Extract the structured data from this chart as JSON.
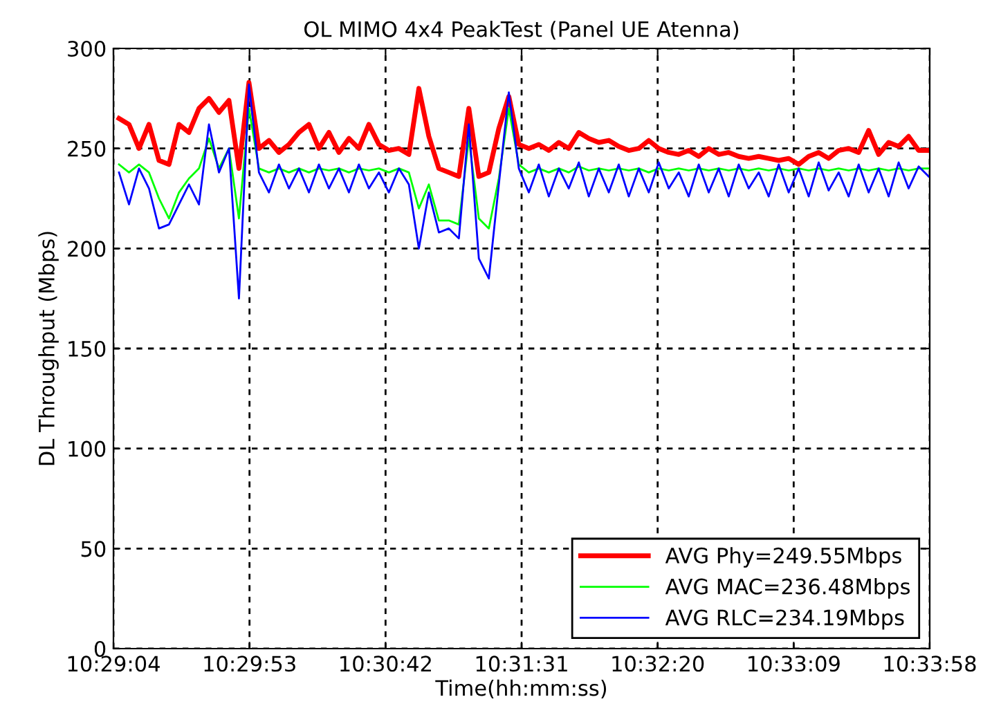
{
  "chart_data": {
    "type": "line",
    "title": "OL MIMO 4x4 PeakTest (Panel UE Atenna)",
    "xlabel": "Time(hh:mm:ss)",
    "ylabel": "DL Throughput (Mbps)",
    "x": [
      10.485,
      10.486,
      10.487,
      10.488,
      10.489,
      10.49,
      10.491,
      10.492,
      10.493,
      10.494,
      10.495,
      10.496,
      10.497,
      10.498,
      10.499,
      10.5,
      10.501,
      10.502,
      10.503,
      10.504,
      10.505,
      10.506,
      10.507,
      10.508,
      10.509,
      10.51,
      10.511,
      10.512,
      10.513,
      10.514,
      10.515,
      10.516,
      10.517,
      10.518,
      10.519,
      10.52,
      10.521,
      10.522,
      10.523,
      10.524,
      10.525,
      10.526,
      10.527,
      10.528,
      10.529,
      10.53,
      10.531,
      10.532,
      10.533,
      10.534,
      10.535,
      10.536,
      10.537,
      10.538,
      10.539,
      10.54,
      10.541,
      10.542,
      10.543,
      10.544,
      10.545,
      10.546,
      10.547,
      10.548,
      10.549,
      10.55,
      10.551,
      10.552,
      10.553,
      10.554,
      10.555,
      10.556,
      10.557,
      10.558,
      10.559,
      10.56,
      10.561,
      10.562,
      10.563,
      10.564,
      10.565,
      10.566
    ],
    "series": [
      {
        "name": "AVG Phy=249.55Mbps",
        "color": "#ff0000",
        "values": [
          265,
          262,
          250,
          262,
          244,
          242,
          262,
          258,
          270,
          275,
          268,
          274,
          240,
          283,
          250,
          254,
          248,
          252,
          258,
          262,
          250,
          258,
          248,
          255,
          250,
          262,
          252,
          249,
          250,
          247,
          280,
          256,
          240,
          238,
          236,
          270,
          236,
          238,
          260,
          276,
          252,
          250,
          252,
          249,
          253,
          250,
          258,
          255,
          253,
          254,
          251,
          249,
          250,
          254,
          250,
          248,
          247,
          249,
          246,
          250,
          247,
          248,
          246,
          245,
          246,
          245,
          244,
          245,
          242,
          246,
          248,
          245,
          249,
          250,
          248,
          259,
          247,
          253,
          251,
          256,
          249,
          249
        ]
      },
      {
        "name": "AVG MAC=236.48Mbps",
        "color": "#00ff00",
        "values": [
          242,
          238,
          242,
          238,
          225,
          215,
          228,
          235,
          240,
          255,
          240,
          250,
          215,
          270,
          240,
          238,
          240,
          238,
          240,
          238,
          240,
          239,
          240,
          238,
          240,
          239,
          240,
          238,
          240,
          238,
          220,
          232,
          214,
          214,
          212,
          255,
          215,
          210,
          235,
          270,
          242,
          238,
          240,
          238,
          240,
          238,
          241,
          239,
          240,
          239,
          240,
          239,
          240,
          238,
          240,
          239,
          240,
          239,
          240,
          239,
          240,
          239,
          240,
          239,
          240,
          239,
          240,
          239,
          240,
          239,
          240,
          239,
          240,
          239,
          240,
          239,
          240,
          239,
          240,
          239,
          240,
          240
        ]
      },
      {
        "name": "AVG RLC=234.19Mbps",
        "color": "#0000ff",
        "values": [
          238,
          222,
          240,
          230,
          210,
          212,
          222,
          232,
          222,
          262,
          238,
          250,
          175,
          282,
          238,
          228,
          242,
          230,
          240,
          228,
          242,
          230,
          240,
          228,
          242,
          230,
          238,
          228,
          240,
          232,
          200,
          228,
          208,
          210,
          205,
          262,
          195,
          185,
          232,
          278,
          240,
          228,
          242,
          226,
          240,
          230,
          243,
          226,
          240,
          228,
          242,
          226,
          240,
          228,
          243,
          230,
          238,
          226,
          242,
          228,
          240,
          226,
          242,
          230,
          238,
          226,
          242,
          228,
          240,
          226,
          243,
          229,
          238,
          226,
          242,
          228,
          240,
          226,
          243,
          230,
          241,
          236
        ]
      }
    ],
    "xlim": [
      10.484444,
      10.566111
    ],
    "xticks": [
      {
        "value": 10.484444,
        "label": "10:29:04"
      },
      {
        "value": 10.498056,
        "label": "10:29:53"
      },
      {
        "value": 10.511667,
        "label": "10:30:42"
      },
      {
        "value": 10.525278,
        "label": "10:31:31"
      },
      {
        "value": 10.538889,
        "label": "10:32:20"
      },
      {
        "value": 10.5525,
        "label": "10:33:09"
      },
      {
        "value": 10.566111,
        "label": "10:33:58"
      }
    ],
    "ylim": [
      0,
      300
    ],
    "yticks": [
      0,
      50,
      100,
      150,
      200,
      250,
      300
    ],
    "grid": true,
    "legend": "bottom right",
    "line_style": "solid",
    "marker": "none"
  }
}
